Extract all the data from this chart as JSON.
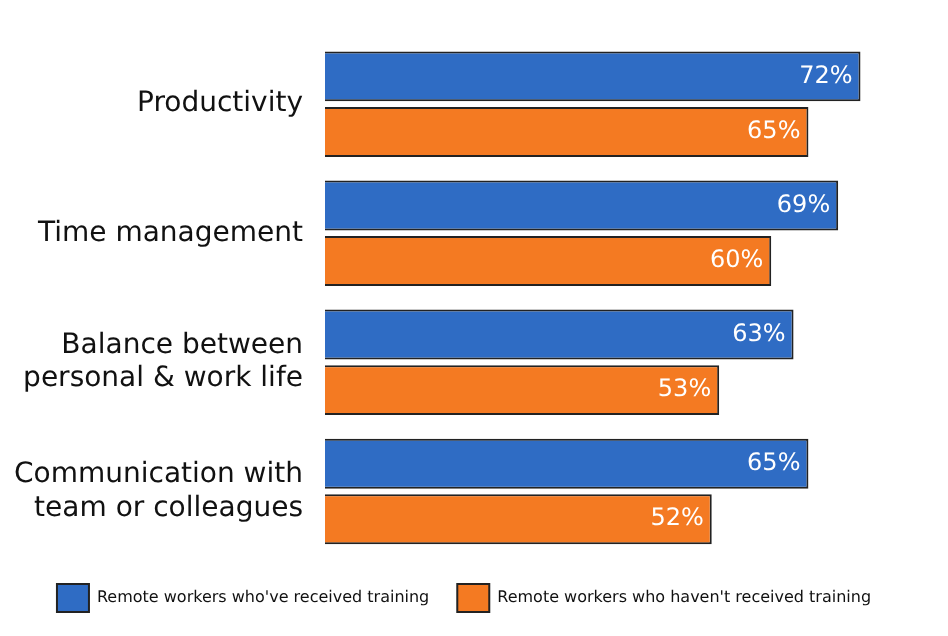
{
  "chart_data": {
    "type": "bar",
    "orientation": "horizontal",
    "categories": [
      "Productivity",
      "Time management",
      "Balance between\npersonal & work life",
      "Communication with\nteam or colleagues"
    ],
    "series": [
      {
        "name": "Remote workers who've received training",
        "color": "#2f6cc4",
        "values": [
          72,
          69,
          63,
          65
        ],
        "value_labels": [
          "72%",
          "69%",
          "63%",
          "65%"
        ]
      },
      {
        "name": "Remote workers who haven't received training",
        "color": "#f47a22",
        "values": [
          65,
          60,
          53,
          52
        ],
        "value_labels": [
          "65%",
          "60%",
          "53%",
          "52%"
        ]
      }
    ],
    "legend": "bottom"
  }
}
